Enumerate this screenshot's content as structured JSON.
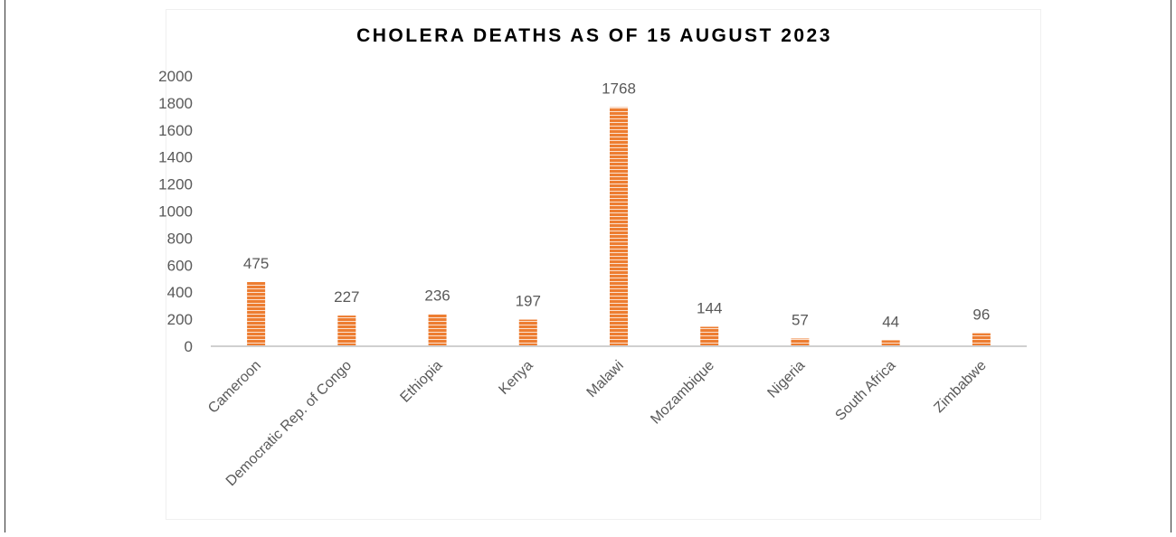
{
  "chart_data": {
    "type": "bar",
    "title": "CHOLERA DEATHS AS OF 15 AUGUST 2023",
    "categories": [
      "Cameroon",
      "Democratic Rep. of Congo",
      "Ethiopia",
      "Kenya",
      "Malawi",
      "Mozambique",
      "Nigeria",
      "South Africa",
      "Zimbabwe"
    ],
    "values": [
      475,
      227,
      236,
      197,
      1768,
      144,
      57,
      44,
      96
    ],
    "color": "#ed7d31",
    "ylim": [
      0,
      2000
    ],
    "yticks": [
      0,
      200,
      400,
      600,
      800,
      1000,
      1200,
      1400,
      1600,
      1800,
      2000
    ],
    "grid": false
  }
}
